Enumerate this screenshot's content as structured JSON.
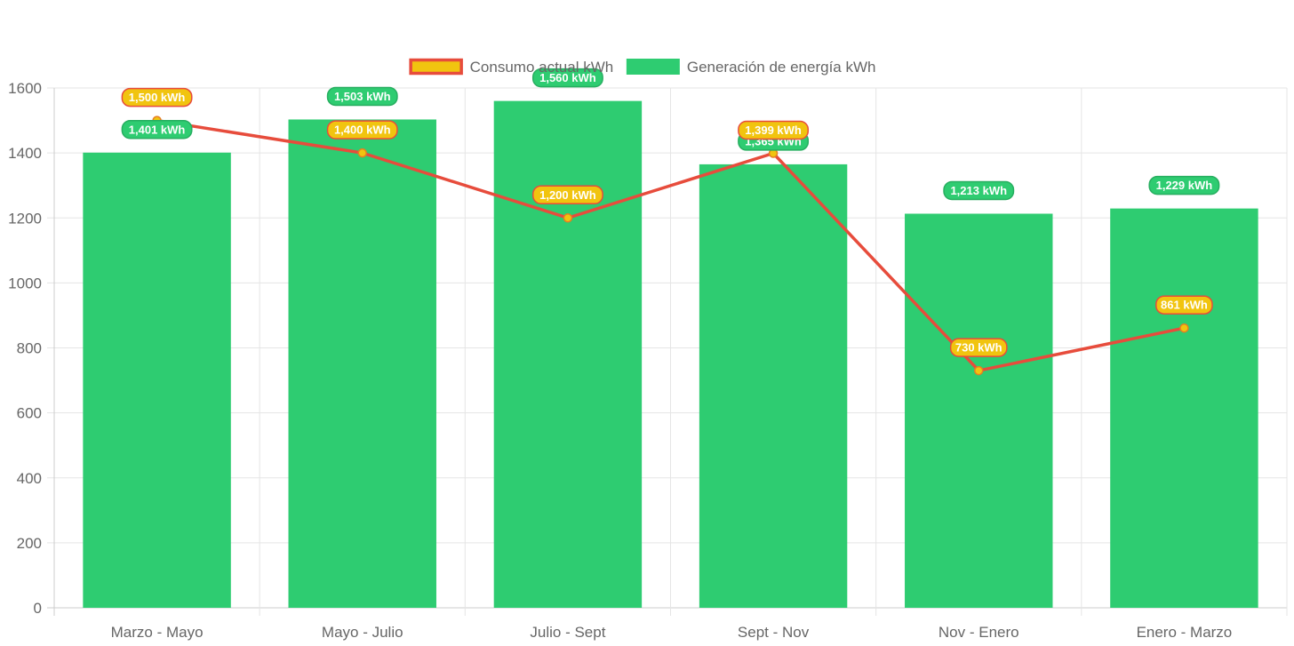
{
  "chart_data": {
    "type": "bar",
    "categories": [
      "Marzo - Mayo",
      "Mayo - Julio",
      "Julio - Sept",
      "Sept - Nov",
      "Nov - Enero",
      "Enero - Marzo"
    ],
    "series": [
      {
        "name": "Generación de energía kWh",
        "type": "bar",
        "values": [
          1401,
          1503,
          1560,
          1365,
          1213,
          1229
        ],
        "labels": [
          "1,401 kWh",
          "1,503 kWh",
          "1,560 kWh",
          "1,365 kWh",
          "1,213 kWh",
          "1,229 kWh"
        ],
        "color": "#2ecc71"
      },
      {
        "name": "Consumo actual kWh",
        "type": "line",
        "values": [
          1500,
          1400,
          1200,
          1399,
          730,
          861
        ],
        "labels": [
          "1,500 kWh",
          "1,400 kWh",
          "1,200 kWh",
          "1,399 kWh",
          "730 kWh",
          "861 kWh"
        ],
        "color": "#e74c3c",
        "point_color": "#f1c40f"
      }
    ],
    "ylim": [
      0,
      1600
    ],
    "yticks": [
      "0",
      "200",
      "400",
      "600",
      "800",
      "1000",
      "1200",
      "1400",
      "1600"
    ],
    "grid": true,
    "legend": "top-center",
    "legend_order": [
      "Consumo actual kWh",
      "Generación de energía kWh"
    ],
    "colors": {
      "bar": "#2ecc71",
      "line": "#e74c3c",
      "line_point": "#f1c40f",
      "grid": "#e5e5e5",
      "text": "#666666"
    }
  }
}
